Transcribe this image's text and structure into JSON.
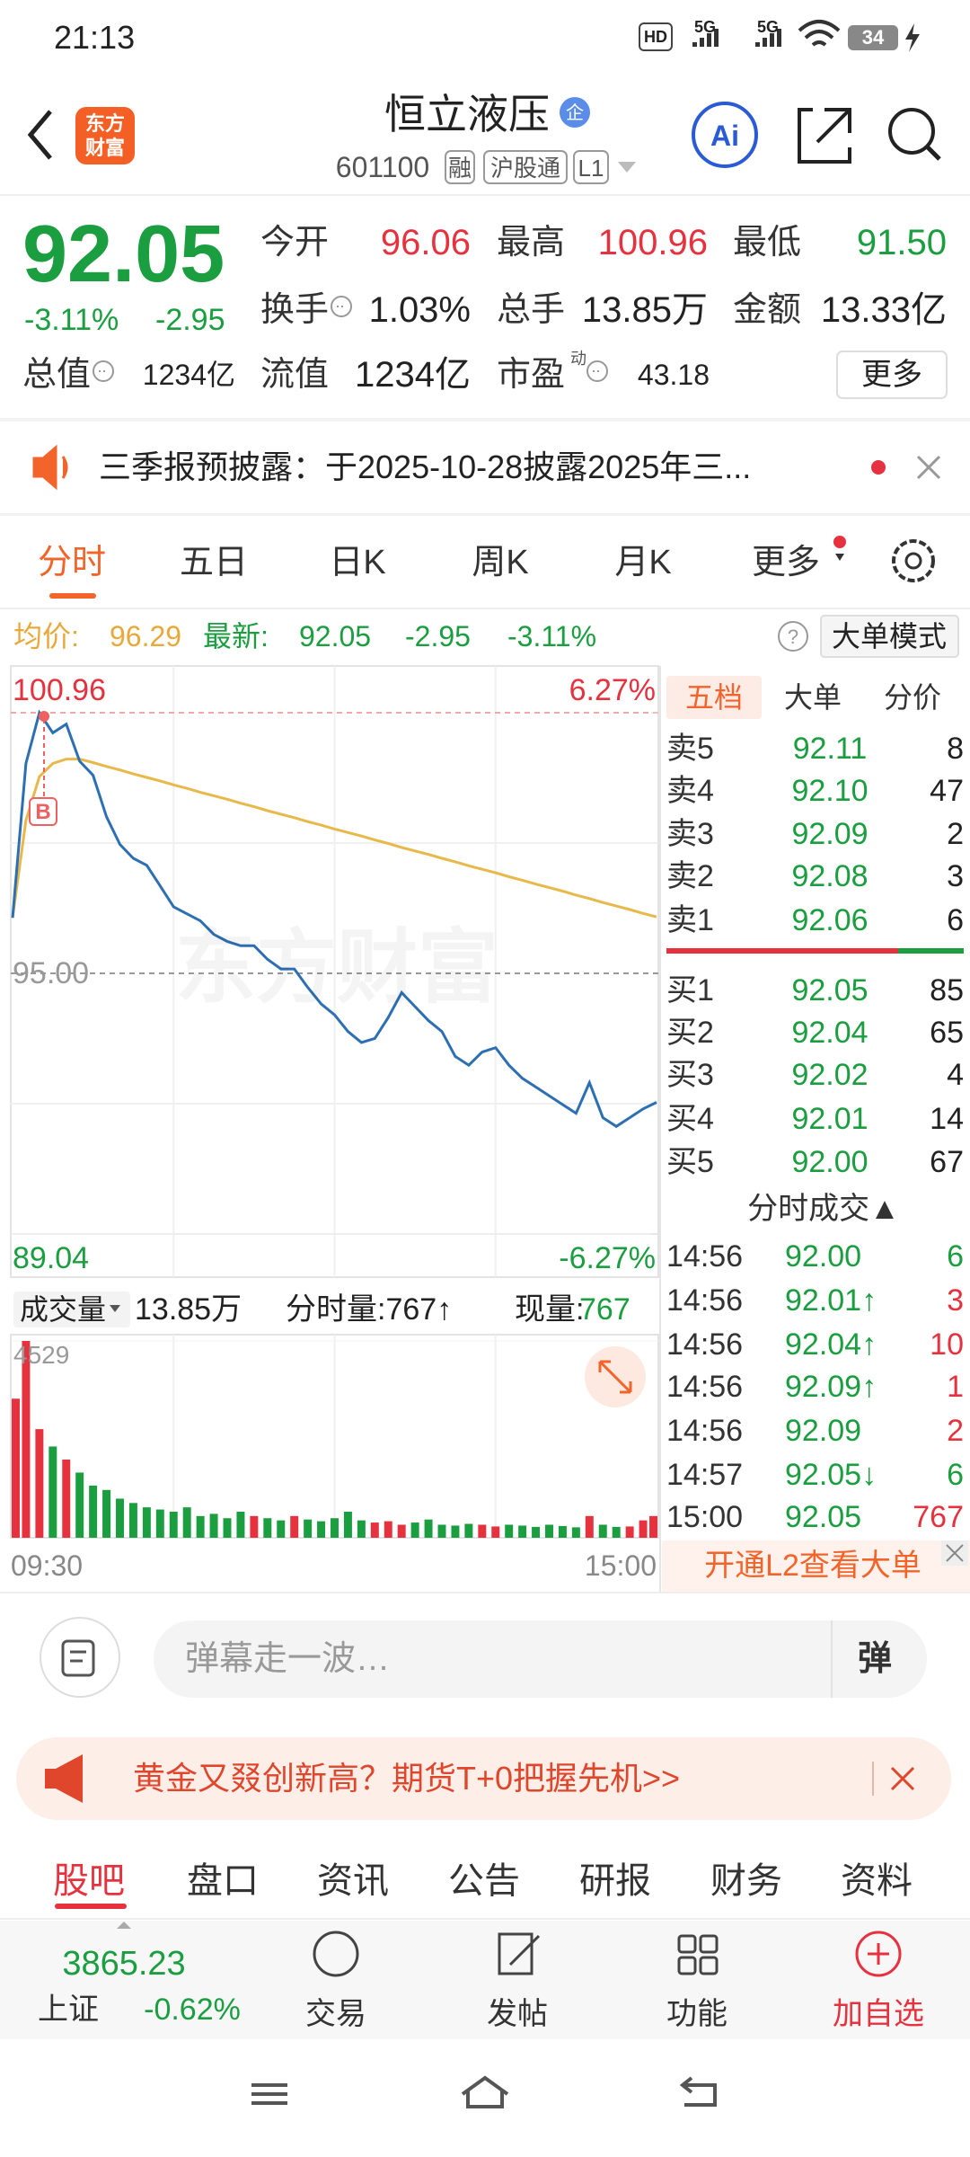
{
  "status_bar": {
    "time": "21:13",
    "hd": "HD",
    "network": [
      "5G",
      "5G"
    ],
    "battery": "34"
  },
  "header": {
    "title": "恒立液压",
    "badge": "企",
    "code": "601100",
    "tags": [
      "融",
      "沪股通",
      "L1"
    ],
    "logo": [
      "东方",
      "财富"
    ],
    "ai": "Ai"
  },
  "quote": {
    "price": "92.05",
    "change_pct": "-3.11%",
    "change": "-2.95",
    "stats": [
      {
        "label": "今开",
        "value": "96.06",
        "color": "#e5323e"
      },
      {
        "label": "最高",
        "value": "100.96",
        "color": "#e5323e"
      },
      {
        "label": "最低",
        "value": "91.50",
        "color": "#1a9e3f"
      },
      {
        "label": "换手",
        "value": "1.03%"
      },
      {
        "label": "总手",
        "value": "13.85万"
      },
      {
        "label": "金额",
        "value": "13.33亿"
      },
      {
        "label": "总值",
        "value": "1234亿"
      },
      {
        "label": "流值",
        "value": "1234亿"
      },
      {
        "label": "市盈",
        "sup": "动",
        "value": "43.18"
      }
    ],
    "more": "更多"
  },
  "notice": {
    "text": "三季报预披露：于2025-10-28披露2025年三..."
  },
  "tabs": {
    "items": [
      "分时",
      "五日",
      "日K",
      "周K",
      "月K",
      "更多"
    ],
    "active": 0
  },
  "chart_info": {
    "avg_label": "均价:",
    "avg": "96.29",
    "latest_label": "最新:",
    "latest": "92.05",
    "change": "-2.95",
    "change_pct": "-3.11%",
    "help": "?",
    "mode": "大单模式"
  },
  "chart_data": [
    {
      "type": "line",
      "watermark": "东方财富",
      "marker": "B",
      "ylim": [
        89.04,
        100.96
      ],
      "yticks": [
        100.96,
        {
          "value": 95,
          "label": "95.00"
        },
        89.04
      ],
      "y2lim": [
        -6.27,
        6.27
      ],
      "y2ticks": [
        {
          "value": 6.27,
          "label": "6.27%"
        },
        {
          "value": -6.27,
          "label": "-6.27%"
        }
      ],
      "series": [
        {
          "color": "#2d6fb3",
          "values": [
            96.27,
            99.8,
            100.96,
            100.5,
            100.7,
            99.85,
            99.53,
            98.58,
            97.95,
            97.63,
            97.47,
            97.0,
            96.52,
            96.36,
            96.2,
            95.89,
            95.73,
            95.63,
            95.63,
            95.32,
            95.1,
            95.1,
            94.68,
            94.3,
            94.05,
            93.67,
            93.42,
            93.51,
            93.99,
            94.56,
            94.24,
            93.92,
            93.67,
            93.1,
            92.9,
            93.2,
            93.3,
            92.9,
            92.6,
            92.4,
            92.2,
            92.0,
            91.8,
            92.5,
            91.7,
            91.5,
            91.7,
            91.9,
            92.05
          ]
        },
        {
          "color": "#e8b84a",
          "values": [
            96.27,
            98.5,
            99.5,
            99.8,
            99.9,
            99.9,
            99.82,
            99.73,
            99.65,
            99.56,
            99.48,
            99.4,
            99.31,
            99.23,
            99.14,
            99.06,
            98.98,
            98.89,
            98.81,
            98.72,
            98.64,
            98.56,
            98.47,
            98.39,
            98.3,
            98.22,
            98.14,
            98.05,
            97.97,
            97.88,
            97.8,
            97.72,
            97.63,
            97.55,
            97.46,
            97.38,
            97.3,
            97.21,
            97.13,
            97.04,
            96.96,
            96.88,
            96.79,
            96.71,
            96.62,
            96.54,
            96.46,
            96.37,
            96.29
          ]
        }
      ]
    },
    {
      "type": "bar",
      "title": "成交量",
      "total": "13.85万",
      "period": "分时量:767↑",
      "current_label": "现量:",
      "current": "767",
      "x_labels": [
        "09:30",
        "15:00"
      ],
      "ylim": [
        0,
        4529
      ],
      "yticks": [
        4529
      ],
      "up_color": "#e5323e",
      "down_color": "#1a9e3f",
      "values": [
        3200,
        4529,
        2500,
        2100,
        1800,
        1500,
        1200,
        1100,
        900,
        800,
        700,
        650,
        600,
        700,
        500,
        550,
        450,
        600,
        500,
        450,
        400,
        500,
        420,
        380,
        450,
        600,
        400,
        350,
        380,
        300,
        350,
        420,
        300,
        280,
        320,
        300,
        260,
        300,
        280,
        250,
        300,
        270,
        240,
        500,
        300,
        250,
        260,
        400,
        500
      ]
    }
  ],
  "order_book": {
    "tabs": [
      "五档",
      "大单",
      "分价"
    ],
    "asks": [
      [
        "卖5",
        "92.11",
        "8"
      ],
      [
        "卖4",
        "92.10",
        "47"
      ],
      [
        "卖3",
        "92.09",
        "2"
      ],
      [
        "卖2",
        "92.08",
        "3"
      ],
      [
        "卖1",
        "92.06",
        "6"
      ]
    ],
    "bids": [
      [
        "买1",
        "92.05",
        "85"
      ],
      [
        "买2",
        "92.04",
        "65"
      ],
      [
        "买3",
        "92.02",
        "4"
      ],
      [
        "买4",
        "92.01",
        "14"
      ],
      [
        "买5",
        "92.00",
        "67"
      ]
    ]
  },
  "trades": {
    "title": "分时成交▲",
    "rows": [
      {
        "time": "14:56",
        "price": "92.00",
        "qty": "6",
        "color": "#1a9e3f"
      },
      {
        "time": "14:56",
        "price": "92.01↑",
        "qty": "3",
        "color": "#e5323e"
      },
      {
        "time": "14:56",
        "price": "92.04↑",
        "qty": "10",
        "color": "#e5323e"
      },
      {
        "time": "14:56",
        "price": "92.09↑",
        "qty": "1",
        "color": "#e5323e"
      },
      {
        "time": "14:56",
        "price": "92.09",
        "qty": "2",
        "color": "#e5323e"
      },
      {
        "time": "14:57",
        "price": "92.05↓",
        "qty": "6",
        "color": "#1a9e3f"
      },
      {
        "time": "15:00",
        "price": "92.05",
        "qty": "767",
        "color": "#e5323e"
      }
    ]
  },
  "l2_banner": "开通L2查看大单",
  "comment_bar": {
    "placeholder": "弹幕走一波…",
    "button": "弹"
  },
  "ad": {
    "text": "黄金又叕创新高？期货T+0把握先机>>"
  },
  "bottom_tabs": {
    "items": [
      "股吧",
      "盘口",
      "资讯",
      "公告",
      "研报",
      "财务",
      "资料"
    ],
    "active": 0
  },
  "nav": {
    "index_value": "3865.23",
    "index_name": "上证",
    "index_change": "-0.62%",
    "items": [
      "交易",
      "发帖",
      "功能",
      "加自选"
    ]
  }
}
